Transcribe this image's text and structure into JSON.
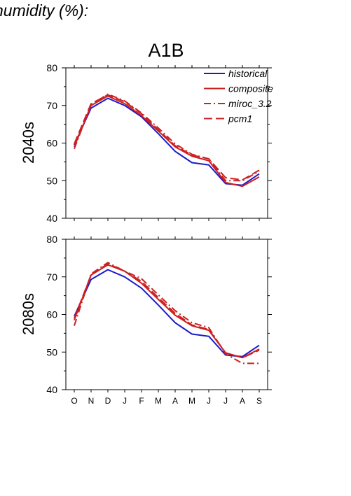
{
  "page": {
    "title": "humidity (%):"
  },
  "legend": {
    "items": [
      {
        "label": "historical",
        "color": "#1a1acc",
        "dash": "solid"
      },
      {
        "label": "composite",
        "color": "#cc2020",
        "dash": "solid"
      },
      {
        "label": "miroc_3.2",
        "color": "#cc2020",
        "dash": "dashdot"
      },
      {
        "label": "pcm1",
        "color": "#cc2020",
        "dash": "dashed"
      }
    ],
    "placement": "top-right"
  },
  "chart_data": [
    {
      "type": "line",
      "title": "A1B",
      "ylabel": "2040s",
      "xlabel": "",
      "ylim": [
        40,
        80
      ],
      "yticks": [
        40,
        50,
        60,
        70,
        80
      ],
      "categories": [
        "O",
        "N",
        "D",
        "J",
        "F",
        "M",
        "A",
        "M",
        "J",
        "J",
        "A",
        "S"
      ],
      "grid": false,
      "series": [
        {
          "name": "historical",
          "values": [
            59.5,
            69.3,
            71.9,
            70.0,
            67.0,
            62.5,
            57.8,
            54.8,
            54.2,
            49.2,
            48.8,
            51.8
          ]
        },
        {
          "name": "composite",
          "values": [
            59.0,
            70.0,
            72.5,
            70.5,
            67.3,
            63.2,
            59.0,
            56.5,
            55.3,
            49.5,
            48.5,
            51.0
          ]
        },
        {
          "name": "miroc_3.2",
          "values": [
            58.5,
            70.2,
            73.0,
            71.2,
            68.0,
            64.0,
            59.8,
            57.0,
            55.8,
            50.0,
            50.0,
            52.5
          ]
        },
        {
          "name": "pcm1",
          "values": [
            59.8,
            70.5,
            72.8,
            71.0,
            67.8,
            63.5,
            59.3,
            56.8,
            55.8,
            50.8,
            50.2,
            52.8
          ]
        }
      ]
    },
    {
      "type": "line",
      "title": "",
      "ylabel": "2080s",
      "xlabel": "",
      "ylim": [
        40,
        80
      ],
      "yticks": [
        40,
        50,
        60,
        70,
        80
      ],
      "categories": [
        "O",
        "N",
        "D",
        "J",
        "F",
        "M",
        "A",
        "M",
        "J",
        "J",
        "A",
        "S"
      ],
      "grid": false,
      "series": [
        {
          "name": "historical",
          "values": [
            59.5,
            69.3,
            71.9,
            70.0,
            67.0,
            62.5,
            57.8,
            54.8,
            54.2,
            49.2,
            48.8,
            51.8
          ]
        },
        {
          "name": "composite",
          "values": [
            58.5,
            70.5,
            73.2,
            71.5,
            68.3,
            64.0,
            59.8,
            57.0,
            55.8,
            49.8,
            48.5,
            50.8
          ]
        },
        {
          "name": "miroc_3.2",
          "values": [
            57.0,
            70.8,
            73.8,
            71.5,
            69.5,
            65.2,
            61.0,
            57.8,
            56.5,
            49.5,
            47.0,
            47.0
          ]
        },
        {
          "name": "pcm1",
          "values": [
            59.0,
            70.5,
            73.5,
            71.5,
            68.8,
            64.5,
            60.3,
            57.2,
            56.0,
            49.8,
            48.5,
            50.5
          ]
        }
      ]
    }
  ]
}
